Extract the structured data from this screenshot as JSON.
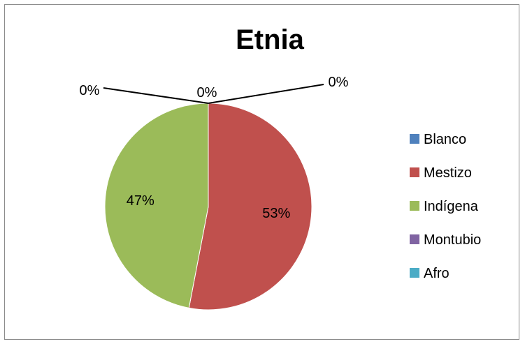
{
  "chart_data": {
    "type": "pie",
    "title": "Etnia",
    "categories": [
      "Blanco",
      "Mestizo",
      "Indígena",
      "Montubio",
      "Afro"
    ],
    "values": [
      0,
      53,
      47,
      0,
      0
    ],
    "data_labels": [
      "0%",
      "53%",
      "47%",
      "0%",
      "0%"
    ],
    "colors": [
      "#4F81BD",
      "#C0504D",
      "#9BBB59",
      "#8064A2",
      "#4BACC6"
    ],
    "legend_position": "right"
  }
}
